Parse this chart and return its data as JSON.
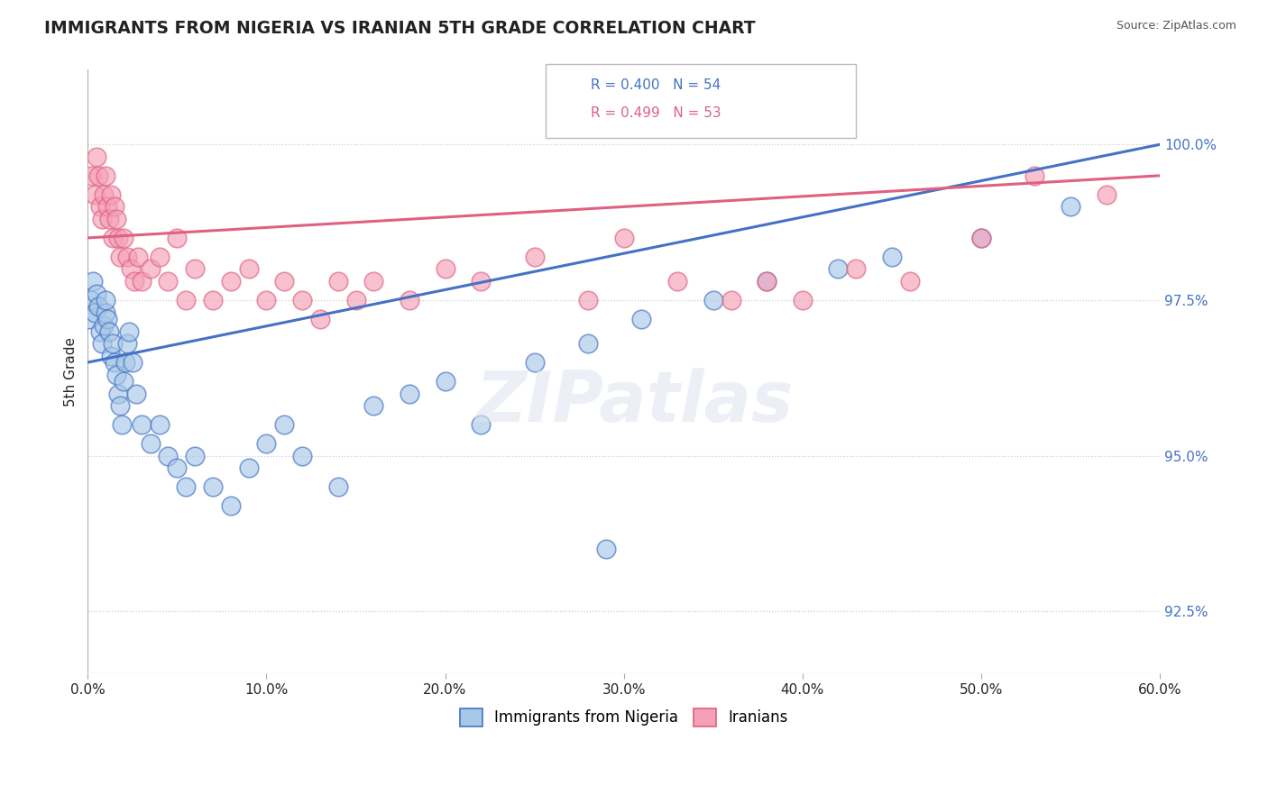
{
  "title": "IMMIGRANTS FROM NIGERIA VS IRANIAN 5TH GRADE CORRELATION CHART",
  "source_text": "Source: ZipAtlas.com",
  "ylabel": "5th Grade",
  "legend_label_1": "Immigrants from Nigeria",
  "legend_label_2": "Iranians",
  "legend_R1": "R = 0.400",
  "legend_N1": "N = 54",
  "legend_R2": "R = 0.499",
  "legend_N2": "N = 53",
  "color_blue": "#a8c8e8",
  "color_pink": "#f4a0b8",
  "color_blue_line": "#4472c4",
  "color_pink_line": "#e06080",
  "color_title": "#222222",
  "color_source": "#555555",
  "background_color": "#ffffff",
  "grid_color": "#cccccc",
  "xlim": [
    0.0,
    60.0
  ],
  "ylim": [
    91.5,
    101.2
  ],
  "yticks": [
    92.5,
    95.0,
    97.5,
    100.0
  ],
  "xticks": [
    0.0,
    10.0,
    20.0,
    30.0,
    40.0,
    50.0,
    60.0
  ],
  "nigeria_x": [
    0.1,
    0.2,
    0.3,
    0.4,
    0.5,
    0.6,
    0.7,
    0.8,
    0.9,
    1.0,
    1.0,
    1.1,
    1.2,
    1.3,
    1.4,
    1.5,
    1.6,
    1.7,
    1.8,
    1.9,
    2.0,
    2.1,
    2.2,
    2.3,
    2.5,
    2.7,
    3.0,
    3.5,
    4.0,
    4.5,
    5.0,
    5.5,
    6.0,
    7.0,
    8.0,
    9.0,
    10.0,
    11.0,
    12.0,
    14.0,
    16.0,
    18.0,
    20.0,
    22.0,
    25.0,
    28.0,
    29.0,
    31.0,
    35.0,
    38.0,
    42.0,
    45.0,
    50.0,
    55.0
  ],
  "nigeria_y": [
    97.2,
    97.5,
    97.8,
    97.3,
    97.6,
    97.4,
    97.0,
    96.8,
    97.1,
    97.3,
    97.5,
    97.2,
    97.0,
    96.6,
    96.8,
    96.5,
    96.3,
    96.0,
    95.8,
    95.5,
    96.2,
    96.5,
    96.8,
    97.0,
    96.5,
    96.0,
    95.5,
    95.2,
    95.5,
    95.0,
    94.8,
    94.5,
    95.0,
    94.5,
    94.2,
    94.8,
    95.2,
    95.5,
    95.0,
    94.5,
    95.8,
    96.0,
    96.2,
    95.5,
    96.5,
    96.8,
    93.5,
    97.2,
    97.5,
    97.8,
    98.0,
    98.2,
    98.5,
    99.0
  ],
  "iran_x": [
    0.2,
    0.4,
    0.5,
    0.6,
    0.7,
    0.8,
    0.9,
    1.0,
    1.1,
    1.2,
    1.3,
    1.4,
    1.5,
    1.6,
    1.7,
    1.8,
    2.0,
    2.2,
    2.4,
    2.6,
    2.8,
    3.0,
    3.5,
    4.0,
    4.5,
    5.0,
    5.5,
    6.0,
    7.0,
    8.0,
    9.0,
    10.0,
    11.0,
    12.0,
    13.0,
    14.0,
    15.0,
    16.0,
    18.0,
    20.0,
    22.0,
    25.0,
    28.0,
    30.0,
    33.0,
    36.0,
    38.0,
    40.0,
    43.0,
    46.0,
    50.0,
    53.0,
    57.0
  ],
  "iran_y": [
    99.5,
    99.2,
    99.8,
    99.5,
    99.0,
    98.8,
    99.2,
    99.5,
    99.0,
    98.8,
    99.2,
    98.5,
    99.0,
    98.8,
    98.5,
    98.2,
    98.5,
    98.2,
    98.0,
    97.8,
    98.2,
    97.8,
    98.0,
    98.2,
    97.8,
    98.5,
    97.5,
    98.0,
    97.5,
    97.8,
    98.0,
    97.5,
    97.8,
    97.5,
    97.2,
    97.8,
    97.5,
    97.8,
    97.5,
    98.0,
    97.8,
    98.2,
    97.5,
    98.5,
    97.8,
    97.5,
    97.8,
    97.5,
    98.0,
    97.8,
    98.5,
    99.5,
    99.2
  ],
  "nigeria_line": [
    0.0,
    60.0,
    96.5,
    100.0
  ],
  "iran_line": [
    0.0,
    60.0,
    98.5,
    99.5
  ]
}
